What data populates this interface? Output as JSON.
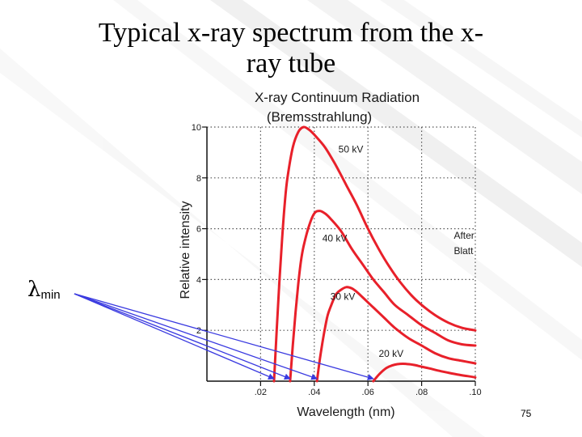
{
  "slide": {
    "title": "Typical x-ray spectrum from the x-ray tube",
    "title_line1": "Typical x-ray spectrum from the x-",
    "title_line2": "ray tube",
    "lambda_symbol": "λ",
    "lambda_subscript": "min",
    "page_number": "75"
  },
  "colors": {
    "curve": "#e8202a",
    "arrow": "#3a3ae0",
    "grid": "#555555",
    "axis": "#111111"
  },
  "chart_data": {
    "type": "line",
    "title": "X-ray Continuum Radiation",
    "subtitle": "(Bremsstrahlung)",
    "xlabel": "Wavelength (nm)",
    "ylabel": "Relative intensity",
    "xlim": [
      0.0,
      0.1
    ],
    "ylim": [
      0,
      10
    ],
    "xticks": [
      0.02,
      0.04,
      0.06,
      0.08,
      0.1
    ],
    "xtick_labels": [
      ".02",
      ".04",
      ".06",
      ".08",
      ".10"
    ],
    "yticks": [
      2,
      4,
      6,
      8,
      10
    ],
    "ytick_labels": [
      "2",
      "4",
      "6",
      "8",
      "10"
    ],
    "grid": true,
    "series": [
      {
        "name": "50 kV",
        "lambda_min": 0.025,
        "x": [
          0.025,
          0.026,
          0.027,
          0.028,
          0.029,
          0.03,
          0.032,
          0.034,
          0.036,
          0.038,
          0.04,
          0.044,
          0.048,
          0.052,
          0.056,
          0.06,
          0.064,
          0.068,
          0.072,
          0.076,
          0.08,
          0.085,
          0.09,
          0.095,
          0.1
        ],
        "y": [
          0.0,
          2.0,
          3.9,
          5.6,
          7.0,
          8.0,
          9.2,
          9.8,
          10.0,
          9.9,
          9.7,
          9.2,
          8.5,
          7.7,
          6.9,
          6.0,
          5.2,
          4.5,
          3.9,
          3.4,
          3.0,
          2.6,
          2.3,
          2.1,
          2.0
        ]
      },
      {
        "name": "40 kV",
        "lambda_min": 0.031,
        "x": [
          0.031,
          0.032,
          0.033,
          0.034,
          0.035,
          0.036,
          0.038,
          0.04,
          0.042,
          0.044,
          0.046,
          0.05,
          0.054,
          0.058,
          0.062,
          0.066,
          0.07,
          0.075,
          0.08,
          0.085,
          0.09,
          0.095,
          0.1
        ],
        "y": [
          0.0,
          1.4,
          2.7,
          3.8,
          4.7,
          5.3,
          6.1,
          6.6,
          6.7,
          6.6,
          6.4,
          5.9,
          5.2,
          4.6,
          4.0,
          3.5,
          3.0,
          2.6,
          2.2,
          1.9,
          1.6,
          1.45,
          1.4
        ]
      },
      {
        "name": "30 kV",
        "lambda_min": 0.041,
        "x": [
          0.041,
          0.042,
          0.043,
          0.044,
          0.045,
          0.046,
          0.048,
          0.05,
          0.052,
          0.054,
          0.056,
          0.058,
          0.062,
          0.066,
          0.07,
          0.075,
          0.08,
          0.085,
          0.09,
          0.095,
          0.1
        ],
        "y": [
          0.0,
          0.8,
          1.5,
          2.1,
          2.6,
          2.9,
          3.4,
          3.6,
          3.7,
          3.65,
          3.5,
          3.3,
          2.9,
          2.5,
          2.1,
          1.7,
          1.4,
          1.1,
          0.9,
          0.8,
          0.7
        ]
      },
      {
        "name": "20 kV",
        "lambda_min": 0.062,
        "x": [
          0.062,
          0.064,
          0.066,
          0.068,
          0.07,
          0.072,
          0.074,
          0.076,
          0.078,
          0.08,
          0.083,
          0.086,
          0.09,
          0.094,
          0.097,
          0.1
        ],
        "y": [
          0.0,
          0.25,
          0.45,
          0.58,
          0.65,
          0.68,
          0.68,
          0.66,
          0.62,
          0.57,
          0.5,
          0.42,
          0.33,
          0.25,
          0.2,
          0.15
        ]
      }
    ],
    "annotations": [
      {
        "text": "50 kV",
        "x": 0.049,
        "y": 9.0
      },
      {
        "text": "40 kV",
        "x": 0.043,
        "y": 5.5
      },
      {
        "text": "30 kV",
        "x": 0.046,
        "y": 3.2
      },
      {
        "text": "20 kV",
        "x": 0.064,
        "y": 0.95
      },
      {
        "text": "After",
        "x": 0.092,
        "y": 5.6
      },
      {
        "text": "Blatt",
        "x": 0.092,
        "y": 5.0
      }
    ]
  }
}
